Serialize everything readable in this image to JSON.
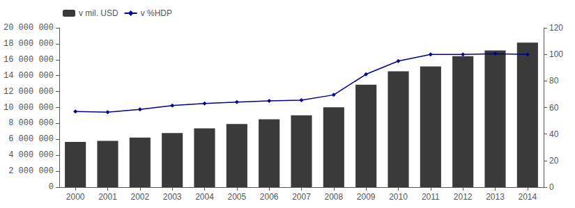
{
  "chart_data": {
    "type": "bar",
    "categories": [
      "2000",
      "2001",
      "2002",
      "2003",
      "2004",
      "2005",
      "2006",
      "2007",
      "2008",
      "2009",
      "2010",
      "2011",
      "2012",
      "2013",
      "2014"
    ],
    "series": [
      {
        "name": "v mil. USD",
        "type": "bar",
        "color": "#3a3a3a",
        "values": [
          5674000,
          5807000,
          6228000,
          6783000,
          7379000,
          7933000,
          8507000,
          9008000,
          10025000,
          12868000,
          14551000,
          15144000,
          16432000,
          17156000,
          18151000
        ]
      },
      {
        "name": "v %HDP",
        "type": "line",
        "color": "#00008B",
        "marker": "diamond",
        "axis": "y2",
        "values": [
          57,
          56.5,
          58.5,
          61.5,
          63,
          64,
          65,
          65.5,
          69.5,
          85,
          95,
          100,
          100,
          100.5,
          100
        ]
      }
    ],
    "ylim": [
      0,
      20000000
    ],
    "yticks": [
      0,
      {
        "value": 2000000,
        "label": "2 000 000"
      },
      {
        "value": 4000000,
        "label": "4 000 000"
      },
      {
        "value": 6000000,
        "label": "6 000 000"
      },
      {
        "value": 8000000,
        "label": "8 000 000"
      },
      {
        "value": 10000000,
        "label": "10 000 000"
      },
      {
        "value": 12000000,
        "label": "12 000 000"
      },
      {
        "value": 14000000,
        "label": "14 000 000"
      },
      {
        "value": 16000000,
        "label": "16 000 000"
      },
      {
        "value": 18000000,
        "label": "18 000 000"
      },
      {
        "value": 20000000,
        "label": "20 000 000"
      }
    ],
    "y2lim": [
      0,
      120
    ],
    "y2ticks": [
      0,
      20,
      40,
      60,
      80,
      100,
      120
    ],
    "grid": false,
    "legend": "upper left"
  }
}
